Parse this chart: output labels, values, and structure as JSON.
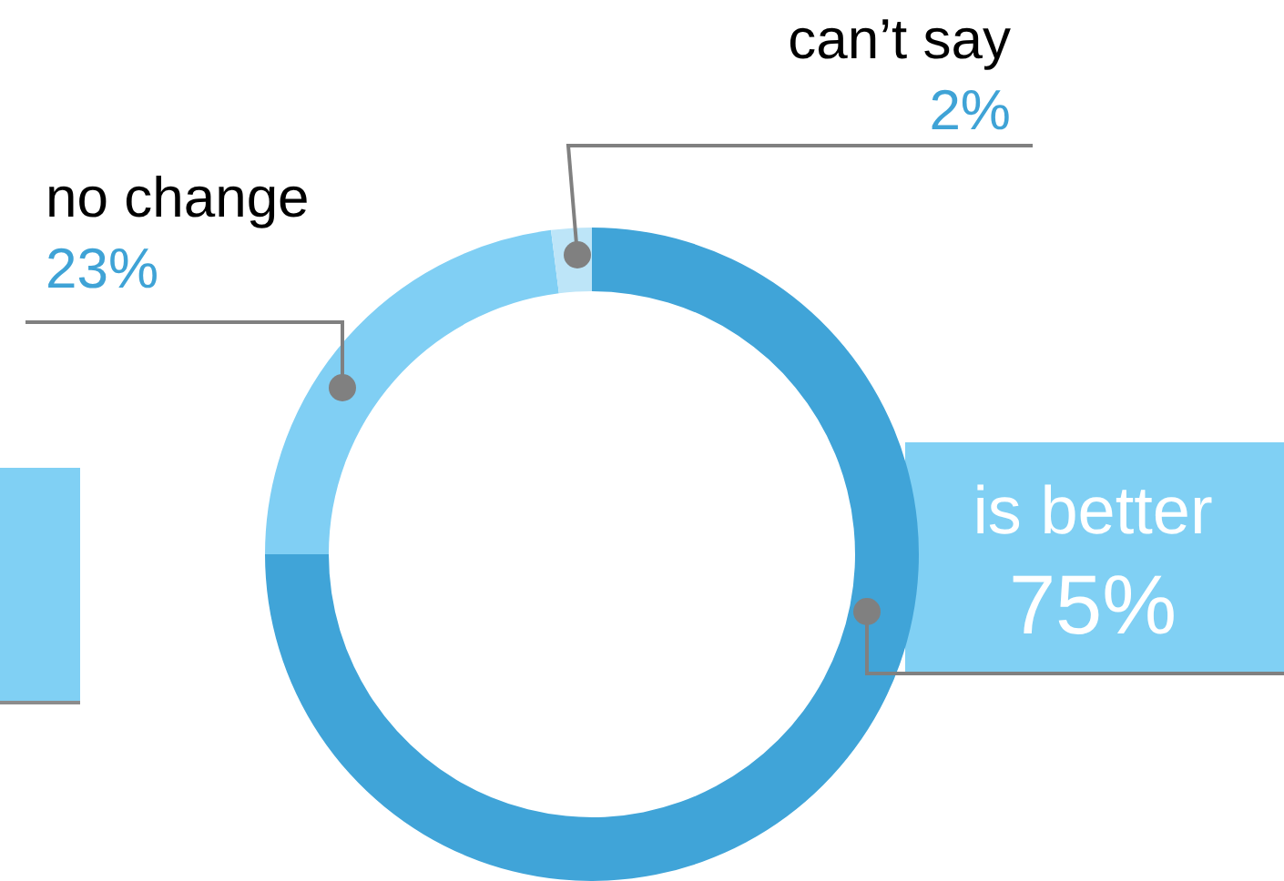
{
  "chart_data": {
    "type": "donut",
    "categories": [
      "is better",
      "no change",
      "can’t say"
    ],
    "values": [
      75,
      23,
      2
    ],
    "colors": [
      "#40a4d8",
      "#80cff4",
      "#bde5f8"
    ],
    "value_labels": [
      "75%",
      "23%",
      "2%"
    ]
  }
}
